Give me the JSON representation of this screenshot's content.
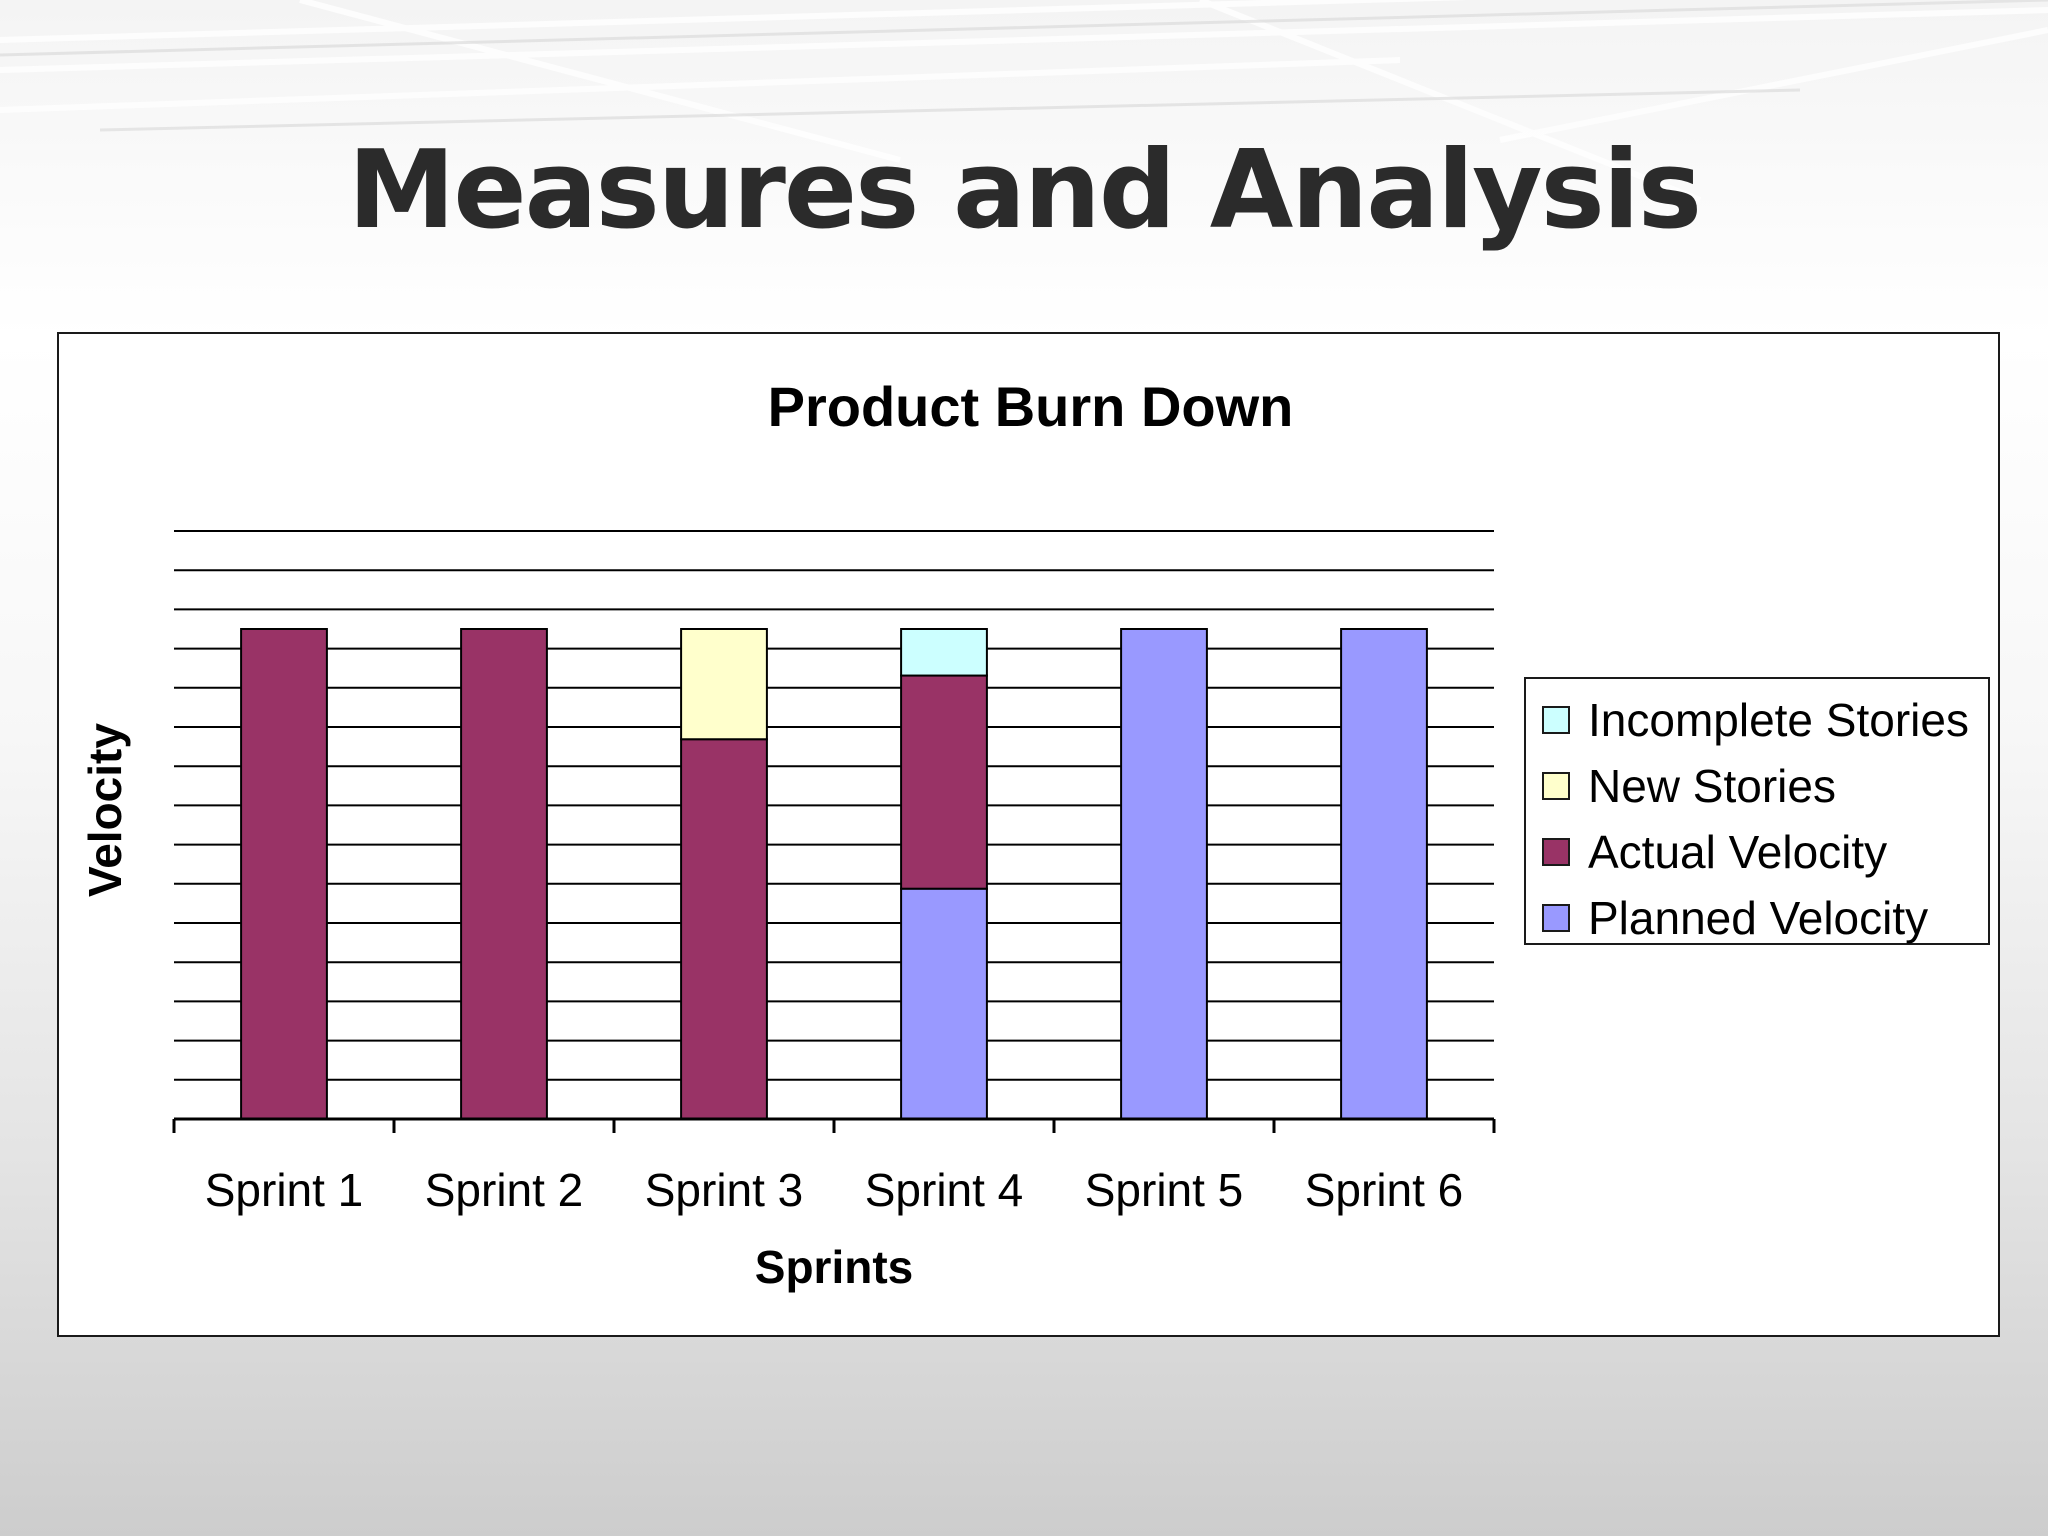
{
  "slide": {
    "title": "Measures and Analysis"
  },
  "chart_data": {
    "type": "bar",
    "stacked": true,
    "title": "Product Burn Down",
    "xlabel": "Sprints",
    "ylabel": "Velocity",
    "categories": [
      "Sprint 1",
      "Sprint 2",
      "Sprint 3",
      "Sprint 4",
      "Sprint 5",
      "Sprint 6"
    ],
    "ylim": [
      0,
      12
    ],
    "gridlines": true,
    "legend_position": "right",
    "series": [
      {
        "name": "Planned Velocity",
        "color": "#9999ff",
        "values": [
          0,
          0,
          0,
          4.7,
          10,
          10
        ]
      },
      {
        "name": "Actual Velocity",
        "color": "#993366",
        "values": [
          10,
          10,
          7.75,
          4.35,
          0,
          0
        ]
      },
      {
        "name": "New Stories",
        "color": "#ffffcc",
        "values": [
          0,
          0,
          2.25,
          0,
          0,
          0
        ]
      },
      {
        "name": "Incomplete Stories",
        "color": "#ccffff",
        "values": [
          0,
          0,
          0,
          0.95,
          0,
          0
        ]
      }
    ],
    "legend_order": [
      "Incomplete Stories",
      "New Stories",
      "Actual Velocity",
      "Planned Velocity"
    ]
  }
}
